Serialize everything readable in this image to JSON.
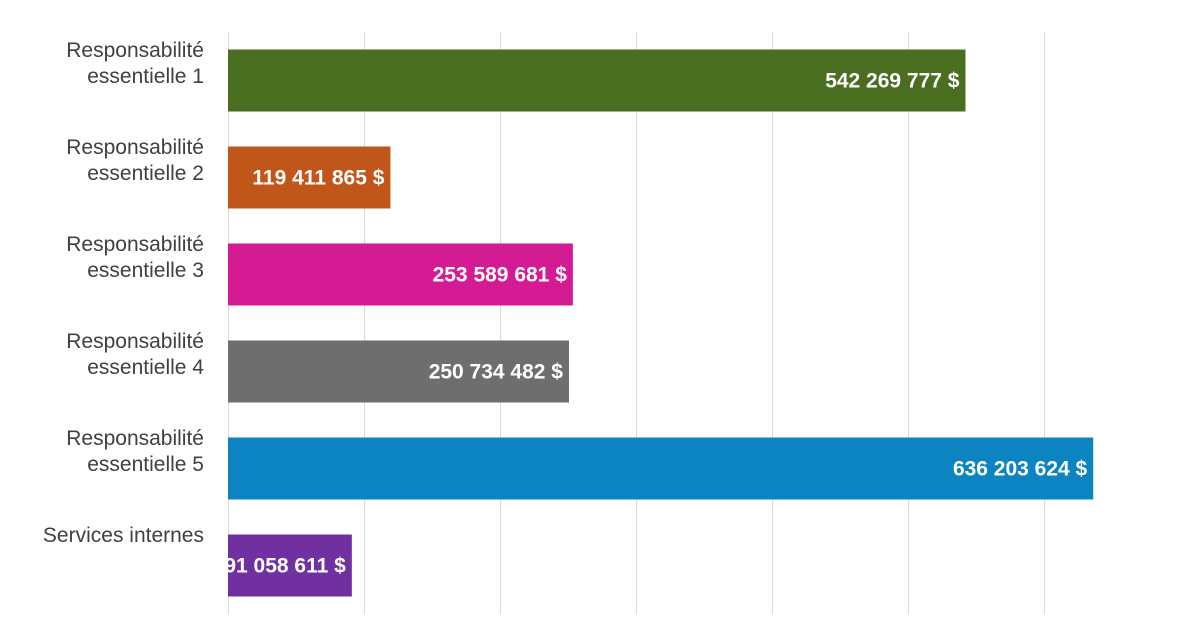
{
  "chart_data": {
    "type": "bar",
    "orientation": "horizontal",
    "categories": [
      [
        "Responsabilité",
        "essentielle 1"
      ],
      [
        "Responsabilité",
        "essentielle 2"
      ],
      [
        "Responsabilité",
        "essentielle 3"
      ],
      [
        "Responsabilité",
        "essentielle 4"
      ],
      [
        "Responsabilité",
        "essentielle 5"
      ],
      [
        "Services internes"
      ]
    ],
    "values": [
      542269777,
      119411865,
      253589681,
      250734482,
      636203624,
      91058611
    ],
    "value_labels": [
      "542 269 777 $",
      "119 411 865 $",
      "253 589 681 $",
      "250 734 482 $",
      "636 203 624 $",
      "91 058 611 $"
    ],
    "colors": [
      "#4a6e1f",
      "#c0561a",
      "#d41b93",
      "#6e6e6e",
      "#0c84c1",
      "#7030a0"
    ],
    "xlim": [
      0,
      700000000
    ],
    "grid_step": 100000000,
    "grid": true,
    "legend": "none",
    "title": "",
    "xlabel": "",
    "ylabel": ""
  }
}
